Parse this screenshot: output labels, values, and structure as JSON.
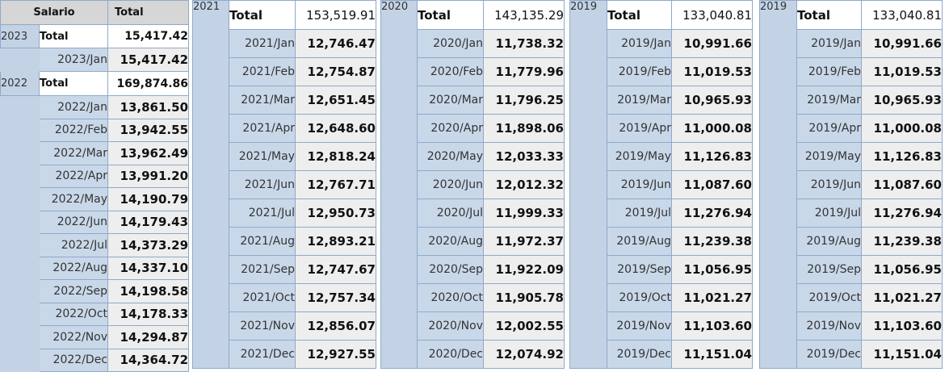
{
  "left": {
    "header_measure": "Salario",
    "header_total": "Total",
    "y2023": {
      "year": "2023",
      "total_label": "Total",
      "total_value": "15,417.42",
      "months": [
        {
          "label": "2023/Jan",
          "value": "15,417.42"
        }
      ]
    },
    "y2022": {
      "year": "2022",
      "total_label": "Total",
      "total_value": "169,874.86",
      "months": [
        {
          "label": "2022/Jan",
          "value": "13,861.50"
        },
        {
          "label": "2022/Feb",
          "value": "13,942.55"
        },
        {
          "label": "2022/Mar",
          "value": "13,962.49"
        },
        {
          "label": "2022/Apr",
          "value": "13,991.20"
        },
        {
          "label": "2022/May",
          "value": "14,190.79"
        },
        {
          "label": "2022/Jun",
          "value": "14,179.43"
        },
        {
          "label": "2022/Jul",
          "value": "14,373.29"
        },
        {
          "label": "2022/Aug",
          "value": "14,337.10"
        },
        {
          "label": "2022/Sep",
          "value": "14,198.58"
        },
        {
          "label": "2022/Oct",
          "value": "14,178.33"
        },
        {
          "label": "2022/Nov",
          "value": "14,294.87"
        },
        {
          "label": "2022/Dec",
          "value": "14,364.72"
        }
      ]
    }
  },
  "panels": [
    {
      "year": "2021",
      "total_label": "Total",
      "total_value": "153,519.91",
      "months": [
        {
          "label": "2021/Jan",
          "value": "12,746.47"
        },
        {
          "label": "2021/Feb",
          "value": "12,754.87"
        },
        {
          "label": "2021/Mar",
          "value": "12,651.45"
        },
        {
          "label": "2021/Apr",
          "value": "12,648.60"
        },
        {
          "label": "2021/May",
          "value": "12,818.24"
        },
        {
          "label": "2021/Jun",
          "value": "12,767.71"
        },
        {
          "label": "2021/Jul",
          "value": "12,950.73"
        },
        {
          "label": "2021/Aug",
          "value": "12,893.21"
        },
        {
          "label": "2021/Sep",
          "value": "12,747.67"
        },
        {
          "label": "2021/Oct",
          "value": "12,757.34"
        },
        {
          "label": "2021/Nov",
          "value": "12,856.07"
        },
        {
          "label": "2021/Dec",
          "value": "12,927.55"
        }
      ]
    },
    {
      "year": "2020",
      "total_label": "Total",
      "total_value": "143,135.29",
      "months": [
        {
          "label": "2020/Jan",
          "value": "11,738.32"
        },
        {
          "label": "2020/Feb",
          "value": "11,779.96"
        },
        {
          "label": "2020/Mar",
          "value": "11,796.25"
        },
        {
          "label": "2020/Apr",
          "value": "11,898.06"
        },
        {
          "label": "2020/May",
          "value": "12,033.33"
        },
        {
          "label": "2020/Jun",
          "value": "12,012.32"
        },
        {
          "label": "2020/Jul",
          "value": "11,999.33"
        },
        {
          "label": "2020/Aug",
          "value": "11,972.37"
        },
        {
          "label": "2020/Sep",
          "value": "11,922.09"
        },
        {
          "label": "2020/Oct",
          "value": "11,905.78"
        },
        {
          "label": "2020/Nov",
          "value": "12,002.55"
        },
        {
          "label": "2020/Dec",
          "value": "12,074.92"
        }
      ]
    },
    {
      "year": "2019",
      "total_label": "Total",
      "total_value": "133,040.81",
      "months": [
        {
          "label": "2019/Jan",
          "value": "10,991.66"
        },
        {
          "label": "2019/Feb",
          "value": "11,019.53"
        },
        {
          "label": "2019/Mar",
          "value": "10,965.93"
        },
        {
          "label": "2019/Apr",
          "value": "11,000.08"
        },
        {
          "label": "2019/May",
          "value": "11,126.83"
        },
        {
          "label": "2019/Jun",
          "value": "11,087.60"
        },
        {
          "label": "2019/Jul",
          "value": "11,276.94"
        },
        {
          "label": "2019/Aug",
          "value": "11,239.38"
        },
        {
          "label": "2019/Sep",
          "value": "11,056.95"
        },
        {
          "label": "2019/Oct",
          "value": "11,021.27"
        },
        {
          "label": "2019/Nov",
          "value": "11,103.60"
        },
        {
          "label": "2019/Dec",
          "value": "11,151.04"
        }
      ]
    },
    {
      "year": "2019",
      "total_label": "Total",
      "total_value": "133,040.81",
      "months": [
        {
          "label": "2019/Jan",
          "value": "10,991.66"
        },
        {
          "label": "2019/Feb",
          "value": "11,019.53"
        },
        {
          "label": "2019/Mar",
          "value": "10,965.93"
        },
        {
          "label": "2019/Apr",
          "value": "11,000.08"
        },
        {
          "label": "2019/May",
          "value": "11,126.83"
        },
        {
          "label": "2019/Jun",
          "value": "11,087.60"
        },
        {
          "label": "2019/Jul",
          "value": "11,276.94"
        },
        {
          "label": "2019/Aug",
          "value": "11,239.38"
        },
        {
          "label": "2019/Sep",
          "value": "11,056.95"
        },
        {
          "label": "2019/Oct",
          "value": "11,021.27"
        },
        {
          "label": "2019/Nov",
          "value": "11,103.60"
        },
        {
          "label": "2019/Dec",
          "value": "11,151.04"
        }
      ]
    }
  ]
}
